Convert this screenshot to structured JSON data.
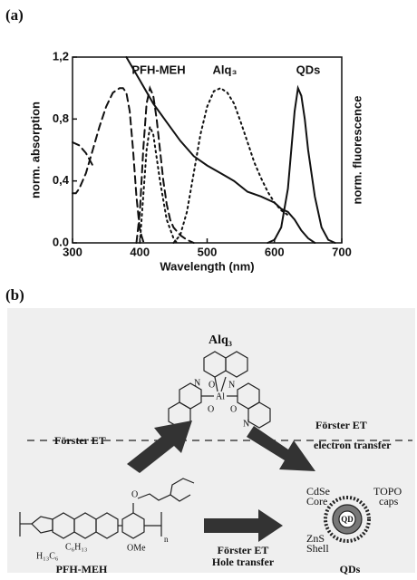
{
  "figure_labels": [
    "(a)",
    "(b)"
  ],
  "chart_data": {
    "type": "line",
    "x_label": "Wavelength (nm)",
    "y_label": "norm. absorption",
    "y2_label": "norm. fluorescence",
    "xlim": [
      300,
      700
    ],
    "xticks": [
      300,
      400,
      500,
      600,
      700
    ],
    "ylim": [
      0,
      1.2
    ],
    "yticks": [
      {
        "value": 0,
        "label": "0.0"
      },
      {
        "value": 0.4,
        "label": "0,4"
      },
      {
        "value": 0.8,
        "label": "0,8"
      },
      {
        "value": 1.2,
        "label": "1,2"
      }
    ],
    "annotations": [
      "PFH-MEH",
      "Alq₃",
      "QDs"
    ],
    "series": [
      {
        "color": "#111111",
        "style": "dashed",
        "x": [
          300,
          310,
          320,
          330
        ],
        "values": [
          0.65,
          0.63,
          0.58,
          0.5
        ]
      },
      {
        "color": "#111111",
        "style": "dashed",
        "x": [
          300,
          305,
          310,
          320,
          330,
          340,
          350,
          360,
          370,
          375,
          380,
          385,
          390,
          395,
          400,
          405,
          410
        ],
        "values": [
          0.32,
          0.32,
          0.35,
          0.45,
          0.6,
          0.75,
          0.88,
          0.97,
          1.0,
          1.0,
          0.97,
          0.85,
          0.6,
          0.3,
          0.08,
          0.01,
          0
        ]
      },
      {
        "color": "#111111",
        "style": "dashed",
        "x": [
          395,
          400,
          405,
          410,
          415,
          420,
          425,
          430,
          435,
          440,
          445,
          450,
          460,
          470,
          480
        ],
        "values": [
          0,
          0.2,
          0.6,
          0.9,
          1.0,
          0.95,
          0.8,
          0.6,
          0.4,
          0.25,
          0.15,
          0.1,
          0.05,
          0.02,
          0
        ]
      },
      {
        "color": "#111111",
        "style": "dotted",
        "x": [
          400,
          405,
          410,
          415,
          420,
          425,
          430,
          440,
          450,
          455
        ],
        "values": [
          0,
          0.3,
          0.6,
          0.75,
          0.7,
          0.55,
          0.4,
          0.15,
          0.03,
          0
        ]
      },
      {
        "color": "#111111",
        "style": "dotted",
        "x": [
          450,
          460,
          470,
          480,
          490,
          500,
          510,
          520,
          530,
          540,
          550,
          560,
          570,
          580,
          590,
          600,
          610,
          620
        ],
        "values": [
          0,
          0.05,
          0.2,
          0.45,
          0.7,
          0.88,
          0.98,
          1.0,
          0.97,
          0.9,
          0.78,
          0.65,
          0.52,
          0.42,
          0.33,
          0.26,
          0.21,
          0.18
        ]
      },
      {
        "color": "#111111",
        "style": "solid",
        "x": [
          380,
          400,
          420,
          440,
          460,
          480,
          500,
          520,
          540,
          560,
          580,
          600,
          610,
          620,
          630,
          640,
          650,
          660
        ],
        "values": [
          1.2,
          1.05,
          0.9,
          0.78,
          0.66,
          0.56,
          0.5,
          0.45,
          0.4,
          0.33,
          0.3,
          0.26,
          0.22,
          0.2,
          0.15,
          0.08,
          0.03,
          0
        ]
      },
      {
        "color": "#111111",
        "style": "solid",
        "x": [
          590,
          600,
          610,
          620,
          625,
          630,
          635,
          640,
          645,
          650,
          660,
          670,
          680,
          690
        ],
        "values": [
          0,
          0.02,
          0.1,
          0.35,
          0.6,
          0.85,
          1.0,
          0.95,
          0.8,
          0.6,
          0.3,
          0.1,
          0.02,
          0
        ]
      }
    ]
  },
  "diagram": {
    "alq3": {
      "label": "Alq₃",
      "atoms": [
        "O",
        "N",
        "Al",
        "O",
        "N",
        "O",
        "N"
      ]
    },
    "left_transfer": "Förster ET",
    "right_transfer": [
      "Förster ET",
      "electron transfer"
    ],
    "bottom_transfer": [
      "Förster ET",
      "Hole transfer"
    ],
    "polymer": {
      "label": "PFH-MEH",
      "atoms": [
        "O",
        "OMe",
        "H₁₃C₆",
        "C₆H₁₃",
        "n"
      ]
    },
    "qd": {
      "label": "QDs",
      "center": "QD",
      "core": [
        "CdSe",
        "Core"
      ],
      "shell": [
        "ZnS",
        "Shell"
      ],
      "caps": [
        "TOPO",
        "caps"
      ]
    }
  }
}
